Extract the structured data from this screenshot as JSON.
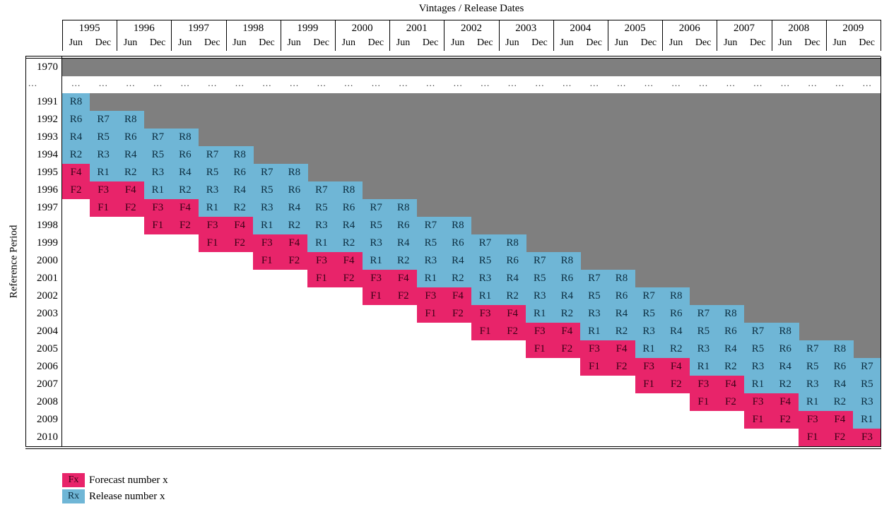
{
  "title": "Vintages / Release Dates",
  "y_axis_label": "Reference Period",
  "years": [
    "1995",
    "1996",
    "1997",
    "1998",
    "1999",
    "2000",
    "2001",
    "2002",
    "2003",
    "2004",
    "2005",
    "2006",
    "2007",
    "2008",
    "2009"
  ],
  "months": [
    "Jun",
    "Dec"
  ],
  "first_row_label": "1970",
  "ellipsis": "…",
  "rows": [
    {
      "label": "1991",
      "start": 0,
      "cells": [
        "R8"
      ]
    },
    {
      "label": "1992",
      "start": 0,
      "cells": [
        "R6",
        "R7",
        "R8"
      ]
    },
    {
      "label": "1993",
      "start": 0,
      "cells": [
        "R4",
        "R5",
        "R6",
        "R7",
        "R8"
      ]
    },
    {
      "label": "1994",
      "start": 0,
      "cells": [
        "R2",
        "R3",
        "R4",
        "R5",
        "R6",
        "R7",
        "R8"
      ]
    },
    {
      "label": "1995",
      "start": 0,
      "cells": [
        "F4",
        "R1",
        "R2",
        "R3",
        "R4",
        "R5",
        "R6",
        "R7",
        "R8"
      ]
    },
    {
      "label": "1996",
      "start": 0,
      "cells": [
        "F2",
        "F3",
        "F4",
        "R1",
        "R2",
        "R3",
        "R4",
        "R5",
        "R6",
        "R7",
        "R8"
      ]
    },
    {
      "label": "1997",
      "start": 1,
      "cells": [
        "F1",
        "F2",
        "F3",
        "F4",
        "R1",
        "R2",
        "R3",
        "R4",
        "R5",
        "R6",
        "R7",
        "R8"
      ]
    },
    {
      "label": "1998",
      "start": 3,
      "cells": [
        "F1",
        "F2",
        "F3",
        "F4",
        "R1",
        "R2",
        "R3",
        "R4",
        "R5",
        "R6",
        "R7",
        "R8"
      ]
    },
    {
      "label": "1999",
      "start": 5,
      "cells": [
        "F1",
        "F2",
        "F3",
        "F4",
        "R1",
        "R2",
        "R3",
        "R4",
        "R5",
        "R6",
        "R7",
        "R8"
      ]
    },
    {
      "label": "2000",
      "start": 7,
      "cells": [
        "F1",
        "F2",
        "F3",
        "F4",
        "R1",
        "R2",
        "R3",
        "R4",
        "R5",
        "R6",
        "R7",
        "R8"
      ]
    },
    {
      "label": "2001",
      "start": 9,
      "cells": [
        "F1",
        "F2",
        "F3",
        "F4",
        "R1",
        "R2",
        "R3",
        "R4",
        "R5",
        "R6",
        "R7",
        "R8"
      ]
    },
    {
      "label": "2002",
      "start": 11,
      "cells": [
        "F1",
        "F2",
        "F3",
        "F4",
        "R1",
        "R2",
        "R3",
        "R4",
        "R5",
        "R6",
        "R7",
        "R8"
      ]
    },
    {
      "label": "2003",
      "start": 13,
      "cells": [
        "F1",
        "F2",
        "F3",
        "F4",
        "R1",
        "R2",
        "R3",
        "R4",
        "R5",
        "R6",
        "R7",
        "R8"
      ]
    },
    {
      "label": "2004",
      "start": 15,
      "cells": [
        "F1",
        "F2",
        "F3",
        "F4",
        "R1",
        "R2",
        "R3",
        "R4",
        "R5",
        "R6",
        "R7",
        "R8"
      ]
    },
    {
      "label": "2005",
      "start": 17,
      "cells": [
        "F1",
        "F2",
        "F3",
        "F4",
        "R1",
        "R2",
        "R3",
        "R4",
        "R5",
        "R6",
        "R7",
        "R8"
      ]
    },
    {
      "label": "2006",
      "start": 19,
      "cells": [
        "F1",
        "F2",
        "F3",
        "F4",
        "R1",
        "R2",
        "R3",
        "R4",
        "R5",
        "R6",
        "R7"
      ]
    },
    {
      "label": "2007",
      "start": 21,
      "cells": [
        "F1",
        "F2",
        "F3",
        "F4",
        "R1",
        "R2",
        "R3",
        "R4",
        "R5"
      ]
    },
    {
      "label": "2008",
      "start": 23,
      "cells": [
        "F1",
        "F2",
        "F3",
        "F4",
        "R1",
        "R2",
        "R3"
      ]
    },
    {
      "label": "2009",
      "start": 25,
      "cells": [
        "F1",
        "F2",
        "F3",
        "F4",
        "R1"
      ]
    },
    {
      "label": "2010",
      "start": 27,
      "cells": [
        "F1",
        "F2",
        "F3"
      ]
    }
  ],
  "legend": [
    {
      "code": "Fx",
      "text": "Forecast number x",
      "kind": "F"
    },
    {
      "code": "Rx",
      "text": "Release number x",
      "kind": "R"
    }
  ],
  "colors": {
    "forecast": "#e8246a",
    "release": "#6fb6d6",
    "gray": "#7f7f7f"
  }
}
